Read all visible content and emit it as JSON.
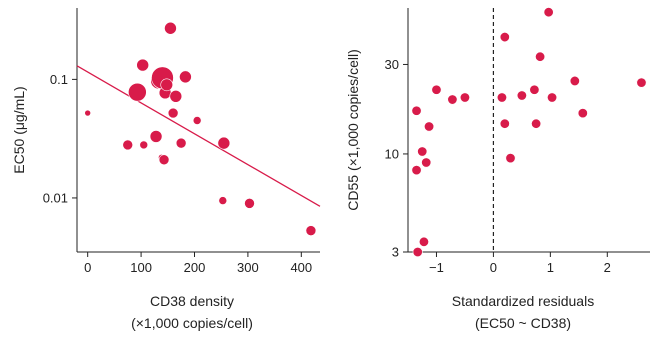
{
  "colors": {
    "accent": "#d81b4a",
    "axis": "#222222"
  },
  "chart_data": [
    {
      "type": "scatter",
      "xlabel": "CD38 density",
      "xlabel2": "(×1,000 copies/cell)",
      "ylabel": "EC50 (μg/mL)",
      "yscale": "log",
      "xlim": [
        -20,
        435
      ],
      "ylim": [
        0.0035,
        0.4
      ],
      "xticks": [
        0,
        100,
        200,
        300,
        400
      ],
      "xtick_labels": [
        "0",
        "100",
        "200",
        "300",
        "400"
      ],
      "yticks": [
        0.01,
        0.1
      ],
      "ytick_labels": [
        "0.01",
        "0.1"
      ],
      "fit_line": {
        "x": [
          -20,
          435
        ],
        "y": [
          0.13,
          0.0085
        ]
      },
      "points": [
        {
          "x": 0,
          "y": 0.052,
          "size": 3
        },
        {
          "x": 75,
          "y": 0.028,
          "size": 5
        },
        {
          "x": 93,
          "y": 0.078,
          "size": 9
        },
        {
          "x": 103,
          "y": 0.132,
          "size": 6
        },
        {
          "x": 105,
          "y": 0.028,
          "size": 4
        },
        {
          "x": 128,
          "y": 0.033,
          "size": 6
        },
        {
          "x": 133,
          "y": 0.097,
          "size": 8
        },
        {
          "x": 138,
          "y": 0.022,
          "size": 3
        },
        {
          "x": 140,
          "y": 0.103,
          "size": 11
        },
        {
          "x": 143,
          "y": 0.021,
          "size": 5
        },
        {
          "x": 145,
          "y": 0.077,
          "size": 6
        },
        {
          "x": 148,
          "y": 0.09,
          "size": 6
        },
        {
          "x": 155,
          "y": 0.27,
          "size": 6
        },
        {
          "x": 160,
          "y": 0.052,
          "size": 5
        },
        {
          "x": 165,
          "y": 0.072,
          "size": 6
        },
        {
          "x": 175,
          "y": 0.029,
          "size": 5
        },
        {
          "x": 183,
          "y": 0.105,
          "size": 6
        },
        {
          "x": 205,
          "y": 0.045,
          "size": 4
        },
        {
          "x": 253,
          "y": 0.0095,
          "size": 4
        },
        {
          "x": 255,
          "y": 0.029,
          "size": 6
        },
        {
          "x": 303,
          "y": 0.009,
          "size": 5
        },
        {
          "x": 418,
          "y": 0.0053,
          "size": 5
        }
      ]
    },
    {
      "type": "scatter",
      "xlabel": "Standardized residuals",
      "xlabel2": "(EC50 ~ CD38)",
      "ylabel": "CD55 (×1,000 copies/cell)",
      "yscale": "log",
      "xlim": [
        -1.5,
        2.75
      ],
      "ylim": [
        3,
        60
      ],
      "xticks": [
        -1,
        0,
        1,
        2
      ],
      "xtick_labels": [
        "−1",
        "0",
        "1",
        "2"
      ],
      "yticks": [
        3,
        10,
        30
      ],
      "ytick_labels": [
        "3",
        "10",
        "30"
      ],
      "zero_line_x": 0,
      "points": [
        {
          "x": -1.35,
          "y": 17
        },
        {
          "x": -1.35,
          "y": 8.2
        },
        {
          "x": -1.33,
          "y": 3.0
        },
        {
          "x": -1.25,
          "y": 10.3
        },
        {
          "x": -1.22,
          "y": 3.4
        },
        {
          "x": -1.18,
          "y": 9.0
        },
        {
          "x": -1.13,
          "y": 14
        },
        {
          "x": -1.0,
          "y": 22
        },
        {
          "x": -0.72,
          "y": 19.5
        },
        {
          "x": -0.5,
          "y": 20
        },
        {
          "x": 0.15,
          "y": 20
        },
        {
          "x": 0.2,
          "y": 14.5
        },
        {
          "x": 0.2,
          "y": 42
        },
        {
          "x": 0.3,
          "y": 9.5
        },
        {
          "x": 0.5,
          "y": 20.5
        },
        {
          "x": 0.72,
          "y": 22
        },
        {
          "x": 0.75,
          "y": 14.5
        },
        {
          "x": 0.82,
          "y": 33
        },
        {
          "x": 0.97,
          "y": 57
        },
        {
          "x": 1.03,
          "y": 20
        },
        {
          "x": 1.43,
          "y": 24.5
        },
        {
          "x": 1.57,
          "y": 16.5
        },
        {
          "x": 2.6,
          "y": 24
        }
      ]
    }
  ]
}
